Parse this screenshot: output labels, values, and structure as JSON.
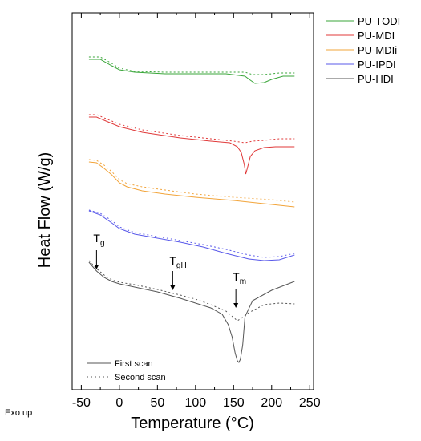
{
  "chart_data": {
    "type": "line",
    "xlabel": "Temperature (°C)",
    "ylabel": "Heat Flow (W/g)",
    "xlim": [
      -62,
      255
    ],
    "x_ticks": [
      -50,
      0,
      50,
      100,
      150,
      200,
      250
    ],
    "exo_label": "Exo up",
    "legend": {
      "placement": "right",
      "entries": [
        {
          "name": "PU-TODI",
          "color": "#3aa63a"
        },
        {
          "name": "PU-MDI",
          "color": "#e03a3a"
        },
        {
          "name": "PU-MDIi",
          "color": "#f2a43a"
        },
        {
          "name": "PU-IPDI",
          "color": "#5a5aea"
        },
        {
          "name": "PU-HDI",
          "color": "#555555"
        }
      ]
    },
    "scan_legend": [
      "First scan",
      "Second scan"
    ],
    "annotations": [
      {
        "base": "T",
        "sub": "g",
        "x": -30
      },
      {
        "base": "T",
        "sub": "gH",
        "x": 70
      },
      {
        "base": "T",
        "sub": "m",
        "x": 153
      }
    ],
    "series": [
      {
        "name": "PU-TODI",
        "color": "#3aa63a",
        "first": {
          "x": [
            -40,
            -25,
            -10,
            0,
            20,
            60,
            100,
            140,
            165,
            172,
            178,
            190,
            200,
            215,
            230
          ],
          "y": [
            74,
            74,
            82,
            87,
            90,
            92,
            92,
            92,
            95,
            100,
            104,
            103,
            99,
            95,
            95
          ]
        },
        "second": {
          "x": [
            -40,
            -25,
            -10,
            0,
            20,
            60,
            100,
            140,
            165,
            175,
            190,
            210,
            230
          ],
          "y": [
            71,
            71,
            79,
            85,
            89,
            90,
            90,
            90,
            90,
            93,
            93,
            91,
            91
          ]
        }
      },
      {
        "name": "PU-MDI",
        "color": "#e03a3a",
        "first": {
          "x": [
            -40,
            -30,
            -15,
            0,
            30,
            80,
            120,
            145,
            155,
            160,
            164,
            166,
            168,
            172,
            178,
            190,
            205,
            230
          ],
          "y": [
            146,
            146,
            152,
            158,
            165,
            172,
            176,
            178,
            183,
            190,
            205,
            217,
            210,
            195,
            188,
            184,
            183,
            183
          ]
        },
        "second": {
          "x": [
            -40,
            -30,
            -15,
            0,
            30,
            80,
            120,
            150,
            165,
            175,
            190,
            210,
            230
          ],
          "y": [
            143,
            143,
            149,
            155,
            162,
            169,
            173,
            176,
            178,
            176,
            175,
            173,
            173
          ]
        }
      },
      {
        "name": "PU-MDIi",
        "color": "#f2a43a",
        "first": {
          "x": [
            -40,
            -30,
            -20,
            -10,
            0,
            10,
            30,
            60,
            100,
            150,
            200,
            230
          ],
          "y": [
            202,
            203,
            210,
            218,
            228,
            233,
            238,
            242,
            246,
            250,
            255,
            258
          ]
        },
        "second": {
          "x": [
            -40,
            -30,
            -20,
            -10,
            0,
            10,
            30,
            60,
            100,
            150,
            200,
            230
          ],
          "y": [
            199,
            200,
            206,
            214,
            224,
            229,
            233,
            237,
            242,
            246,
            249,
            252
          ]
        }
      },
      {
        "name": "PU-IPDI",
        "color": "#5a5aea",
        "first": {
          "x": [
            -40,
            -25,
            -10,
            0,
            20,
            50,
            80,
            110,
            140,
            170,
            190,
            210,
            230
          ],
          "y": [
            263,
            268,
            278,
            285,
            292,
            297,
            302,
            308,
            316,
            323,
            325,
            324,
            318
          ]
        },
        "second": {
          "x": [
            -40,
            -25,
            -10,
            0,
            20,
            50,
            80,
            110,
            140,
            170,
            190,
            210,
            230
          ],
          "y": [
            262,
            266,
            275,
            283,
            290,
            295,
            300,
            305,
            311,
            318,
            321,
            320,
            316
          ]
        }
      },
      {
        "name": "PU-HDI",
        "color": "#555555",
        "first": {
          "x": [
            -40,
            -30,
            -20,
            -10,
            0,
            20,
            50,
            80,
            100,
            120,
            135,
            143,
            148,
            152,
            155,
            157,
            159,
            162,
            165,
            175,
            200,
            230
          ],
          "y": [
            327,
            338,
            346,
            351,
            354,
            358,
            364,
            372,
            378,
            384,
            392,
            405,
            420,
            440,
            450,
            452,
            448,
            430,
            395,
            375,
            362,
            351
          ]
        },
        "second": {
          "x": [
            -40,
            -30,
            -20,
            -10,
            0,
            20,
            50,
            80,
            100,
            120,
            140,
            150,
            155,
            160,
            170,
            190,
            210,
            230
          ],
          "y": [
            325,
            335,
            343,
            349,
            352,
            355,
            361,
            368,
            373,
            380,
            388,
            396,
            400,
            397,
            390,
            380,
            378,
            379
          ]
        }
      }
    ]
  }
}
